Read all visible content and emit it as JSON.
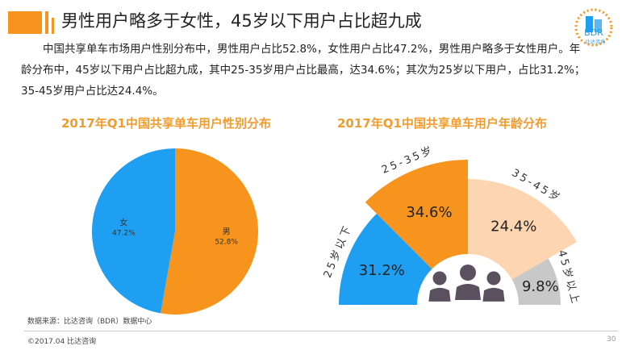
{
  "header": {
    "title": "男性用户略多于女性，45岁以下用户占比超九成",
    "logo_text": "BDR",
    "logo_sub": "比达咨询"
  },
  "body": "中国共享单车市场用户性别分布中，男性用户占比52.8%，女性用户占比47.2%，男性用户略多于女性用户。年龄分布中，45岁以下用户占比超九成，其中25-35岁用户占比最高，达34.6%；其次为25岁以下用户，占比31.2%；35-45岁用户占比达24.4%。",
  "chart_data": [
    {
      "type": "pie",
      "title": "2017年Q1中国共享单车用户性别分布",
      "slices": [
        {
          "label": "男",
          "value": 52.8,
          "display": "52.8%",
          "color": "#f7941d"
        },
        {
          "label": "女",
          "value": 47.2,
          "display": "47.2%",
          "color": "#1e9ff2"
        }
      ]
    },
    {
      "type": "pie",
      "title": "2017年Q1中国共享单车用户年龄分布",
      "variant": "half-donut",
      "slices": [
        {
          "label": "25岁以下",
          "value": 31.2,
          "display": "31.2%",
          "color": "#1e9ff2"
        },
        {
          "label": "25-35岁",
          "value": 34.6,
          "display": "34.6%",
          "color": "#f7941d"
        },
        {
          "label": "35-45岁",
          "value": 24.4,
          "display": "24.4%",
          "color": "#fdd5b1"
        },
        {
          "label": "45岁以上",
          "value": 9.8,
          "display": "9.8%",
          "color": "#c8c8c8"
        }
      ]
    }
  ],
  "footer": {
    "source": "数据来源：比达咨询（BDR）数据中心",
    "copyright": "©2017.04    比达咨询",
    "page": "30"
  }
}
